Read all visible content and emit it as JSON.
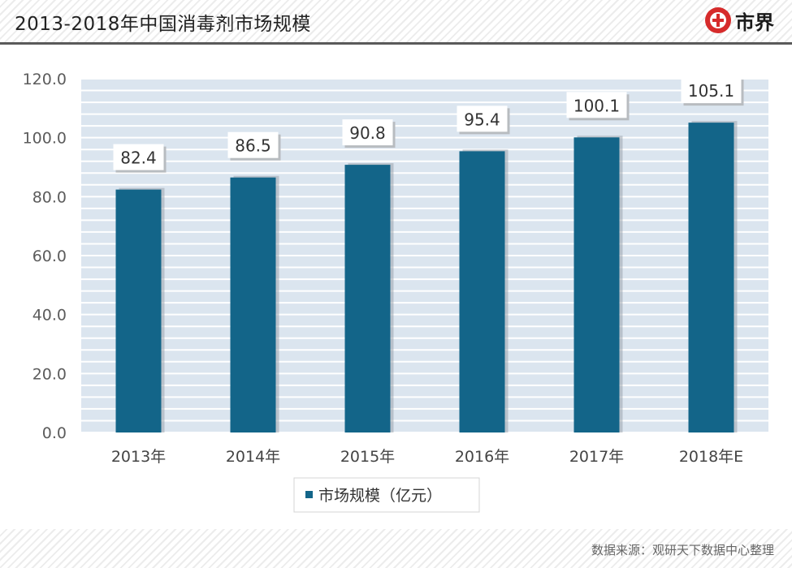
{
  "header": {
    "title": "2013-2018年中国消毒剂市场规模",
    "logo_text": "市界"
  },
  "footer": {
    "source": "数据来源：观研天下数据中心整理"
  },
  "colors": {
    "bar": "#136589",
    "plot_background": "#dbe5ef",
    "gridline": "#ffffff",
    "logo_red": "#d62b2b"
  },
  "chart_data": {
    "type": "bar",
    "title": "2013-2018年中国消毒剂市场规模",
    "categories": [
      "2013年",
      "2014年",
      "2015年",
      "2016年",
      "2017年",
      "2018年E"
    ],
    "series": [
      {
        "name": "市场规模（亿元）",
        "values": [
          82.4,
          86.5,
          90.8,
          95.4,
          100.1,
          105.1
        ]
      }
    ],
    "data_labels": [
      "82.4",
      "86.5",
      "90.8",
      "95.4",
      "100.1",
      "105.1"
    ],
    "yticks": [
      "0.0",
      "20.0",
      "40.0",
      "60.0",
      "80.0",
      "100.0",
      "120.0"
    ],
    "ylim": [
      0,
      120
    ],
    "xlabel": "",
    "ylabel": "",
    "grid": true,
    "legend_position": "bottom-center"
  }
}
